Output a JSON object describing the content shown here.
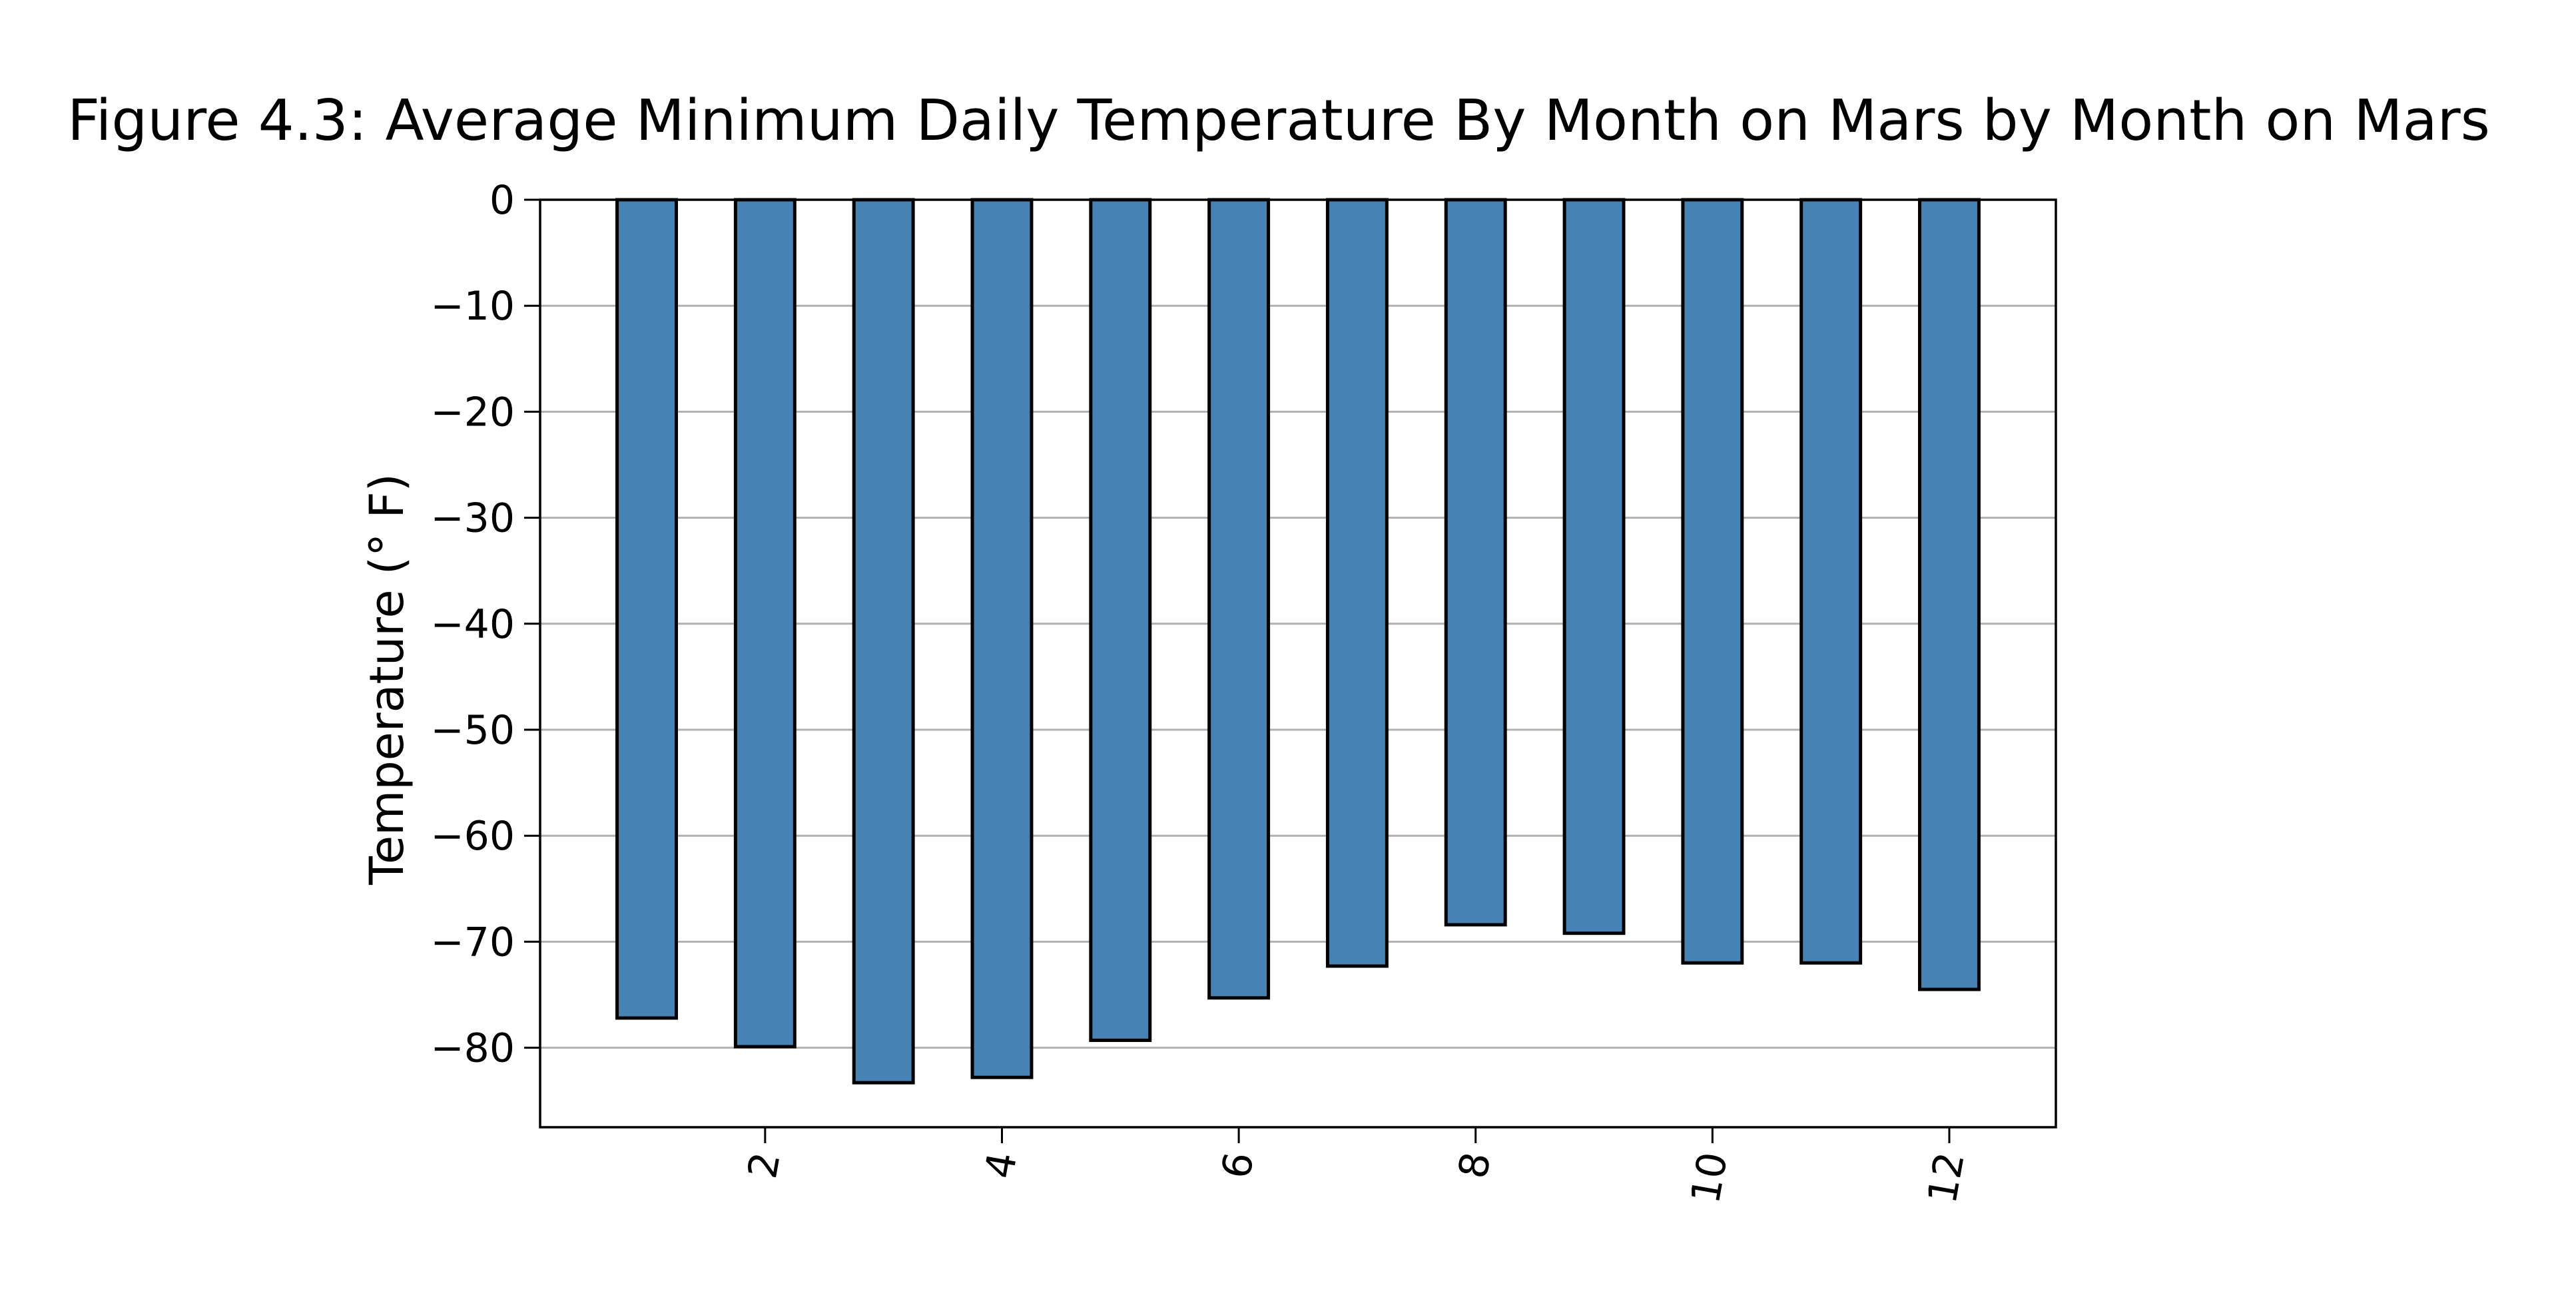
{
  "chart_data": {
    "type": "bar",
    "title": "Figure 4.3: Average Minimum Daily Temperature By Month on Mars by Month on Mars",
    "xlabel": "",
    "ylabel": "Temperature (° F)",
    "x": [
      1,
      2,
      3,
      4,
      5,
      6,
      7,
      8,
      9,
      10,
      11,
      12
    ],
    "values": [
      -77.2,
      -79.9,
      -83.3,
      -82.8,
      -79.3,
      -75.3,
      -72.3,
      -68.4,
      -69.2,
      -72.0,
      -72.0,
      -74.5
    ],
    "xticks": [
      2,
      4,
      6,
      8,
      10,
      12
    ],
    "yticks": [
      0,
      -10,
      -20,
      -30,
      -40,
      -50,
      -60,
      -70,
      -80
    ],
    "ylim": [
      -87.5,
      0
    ],
    "xlim": [
      0.1,
      12.9
    ],
    "grid": "horizontal",
    "legend": "none",
    "colors": {
      "bar_fill": "#4682b4",
      "bar_edge": "#000000",
      "grid": "#b0b0b0"
    }
  }
}
